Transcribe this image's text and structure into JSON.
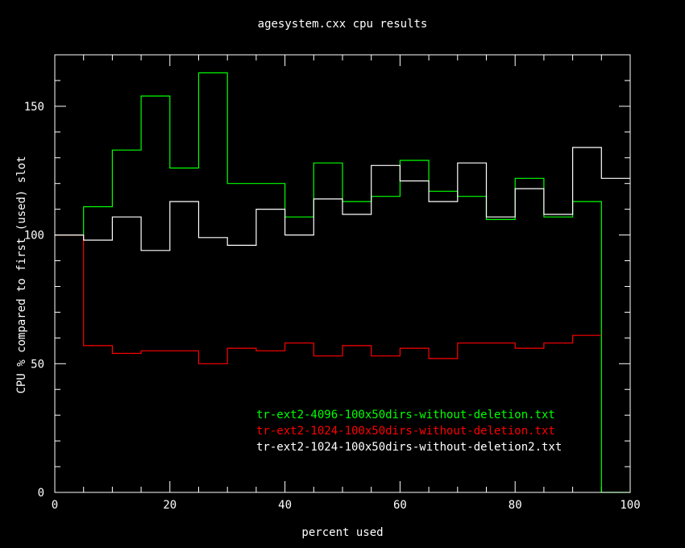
{
  "chart_data": {
    "type": "line",
    "step": true,
    "title": "agesystem.cxx cpu results",
    "xlabel": "percent used",
    "ylabel": "CPU % compared to first (used) slot",
    "xlim": [
      0,
      100
    ],
    "ylim": [
      0,
      170
    ],
    "xticks": [
      0,
      20,
      40,
      60,
      80,
      100
    ],
    "yticks": [
      0,
      50,
      100,
      150
    ],
    "legend_position": "bottom-right inside plot",
    "x_edges": [
      0,
      5,
      10,
      15,
      20,
      25,
      30,
      35,
      40,
      45,
      50,
      55,
      60,
      65,
      70,
      75,
      80,
      85,
      90,
      95,
      100
    ],
    "series": [
      {
        "name": "tr-ext2-4096-100x50dirs-without-deletion.txt",
        "color": "#00ff00",
        "values": [
          100,
          111,
          133,
          154,
          126,
          163,
          120,
          120,
          107,
          128,
          113,
          115,
          129,
          117,
          115,
          106,
          122,
          107,
          113,
          0
        ]
      },
      {
        "name": "tr-ext2-1024-100x50dirs-without-deletion.txt",
        "color": "#ff0000",
        "values": [
          100,
          57,
          54,
          55,
          55,
          50,
          56,
          55,
          58,
          53,
          57,
          53,
          56,
          52,
          58,
          58,
          56,
          58,
          61,
          null
        ]
      },
      {
        "name": "tr-ext2-1024-100x50dirs-without-deletion2.txt",
        "color": "#ffffff",
        "values": [
          100,
          98,
          107,
          94,
          113,
          99,
          96,
          110,
          100,
          114,
          108,
          127,
          121,
          113,
          128,
          107,
          118,
          108,
          134,
          122
        ]
      }
    ]
  }
}
